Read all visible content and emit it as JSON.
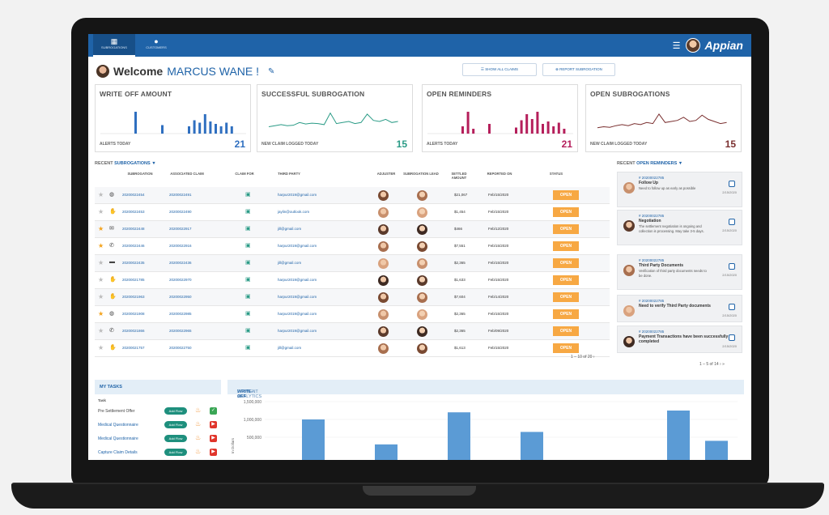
{
  "nav": {
    "tabs": [
      {
        "label": "SUBROGATIONS",
        "icon": "building-icon"
      },
      {
        "label": "CUSTOMERS",
        "icon": "person-icon"
      }
    ],
    "brand": "Appian"
  },
  "header": {
    "welcome": "Welcome",
    "user": "MARCUS WANE !",
    "btn_show_claims": "☰ SHOW ALL CLAIMS",
    "btn_report": "⊕ REPORT SUBROGATION"
  },
  "kpis": [
    {
      "title": "WRITE OFF AMOUNT",
      "foot": "ALERTS TODAY",
      "value": "21",
      "color": "#2f6fc0",
      "type": "bar"
    },
    {
      "title": "SUCCESSFUL SUBROGATION",
      "foot": "NEW CLAIM LOGGED TODAY",
      "value": "15",
      "color": "#2a9b86",
      "type": "line"
    },
    {
      "title": "OPEN REMINDERS",
      "foot": "ALERTS TODAY",
      "value": "21",
      "color": "#b51f5b",
      "type": "bar"
    },
    {
      "title": "OPEN SUBROGATIONS",
      "foot": "NEW CLAIM LOGGED TODAY",
      "value": "15",
      "color": "#7a2f2f",
      "type": "line"
    }
  ],
  "recent": {
    "title_a": "RECENT ",
    "title_b": "SUBROGATIONS",
    "filter_icon": "filter-icon",
    "headers": [
      "SUBROGATION",
      "ASSOCIATED CLAIM",
      "CLAIM FOR",
      "THIRD PARTY",
      "ADJUSTER",
      "SUBROGATION LEAD",
      "SETTLED AMOUNT",
      "REPORTED ON",
      "STATUS"
    ],
    "rows": [
      {
        "star": false,
        "channel": "web-icon",
        "sub": "20200022454",
        "claim": "20200022491",
        "party": "harpur2019@gmail.com",
        "amount": "$21,067",
        "date": "Feb/15/2020",
        "status": "OPEN"
      },
      {
        "star": false,
        "channel": "hand-icon",
        "sub": "20200022453",
        "claim": "20200022490",
        "party": "jaylin@outlook.com",
        "amount": "$1,454",
        "date": "Feb/15/2020",
        "status": "OPEN"
      },
      {
        "star": true,
        "channel": "mail-icon",
        "sub": "20200022448",
        "claim": "20200022917",
        "party": "jill@gmail.com",
        "amount": "$466",
        "date": "Feb/12/2020",
        "status": "OPEN"
      },
      {
        "star": true,
        "channel": "phone-icon",
        "sub": "20200022446",
        "claim": "20200022916",
        "party": "harpur2019@gmail.com",
        "amount": "$7,551",
        "date": "Feb/15/2020",
        "status": "OPEN"
      },
      {
        "star": false,
        "channel": "chat-icon",
        "sub": "20200022435",
        "claim": "20200022436",
        "party": "jill@gmail.com",
        "amount": "$2,365",
        "date": "Feb/15/2020",
        "status": "OPEN"
      },
      {
        "star": false,
        "channel": "hand-icon",
        "sub": "20200021785",
        "claim": "20200022970",
        "party": "harpur2019@gmail.com",
        "amount": "$1,633",
        "date": "Feb/15/2020",
        "status": "OPEN"
      },
      {
        "star": false,
        "channel": "hand-icon",
        "sub": "20200021963",
        "claim": "20200022950",
        "party": "harpur2019@gmail.com",
        "amount": "$7,604",
        "date": "Feb/14/2020",
        "status": "OPEN"
      },
      {
        "star": true,
        "channel": "web-icon",
        "sub": "20200021908",
        "claim": "20200022985",
        "party": "harpur2019@gmail.com",
        "amount": "$2,365",
        "date": "Feb/15/2020",
        "status": "OPEN"
      },
      {
        "star": false,
        "channel": "phone-icon",
        "sub": "20200021866",
        "claim": "20200022965",
        "party": "harpur2019@gmail.com",
        "amount": "$2,365",
        "date": "Feb/09/2020",
        "status": "OPEN"
      },
      {
        "star": false,
        "channel": "hand-icon",
        "sub": "20200021757",
        "claim": "20200022750",
        "party": "jill@gmail.com",
        "amount": "$1,613",
        "date": "Feb/15/2020",
        "status": "OPEN"
      }
    ],
    "pager": "1 – 10 of 20 ›"
  },
  "reminders": {
    "title_a": "RECENT ",
    "title_b": "OPEN REMINDERS",
    "items": [
      {
        "id": "# 20200022785",
        "title": "Follow Up",
        "desc": "Need to follow up as early as possible",
        "time": "2/15/2020"
      },
      {
        "id": "# 20200022785",
        "title": "Negotiation",
        "desc": "The settlement negotiation is ongoing and collection is processing. May take 3-5 days.",
        "time": "2/15/2020"
      },
      {
        "id": "# 20200022785",
        "title": "Third Party Documents",
        "desc": "Verification of third party documents needs to be done.",
        "time": "2/15/2020"
      },
      {
        "id": "# 20200022785",
        "title": "Need to verify Third Party documents",
        "desc": "",
        "time": "2/15/2020"
      },
      {
        "id": "# 20200022785",
        "title": "Payment Transactions have been successfully completed",
        "desc": "",
        "time": "2/15/2020"
      }
    ],
    "pager": "1 – 5 of 14 ›  »"
  },
  "tasks": {
    "title": "MY TASKS",
    "col": "Task",
    "items": [
      {
        "name": "Pre Settlement Offer",
        "pill": "Add Flow",
        "flag": "green"
      },
      {
        "name": "Medical Questionnaire",
        "pill": "Add Flow",
        "flag": "red"
      },
      {
        "name": "Medical Questionnaire",
        "pill": "Add Flow",
        "flag": "red"
      },
      {
        "name": "Capture Claim Details",
        "pill": "Add Flow",
        "flag": "red"
      }
    ]
  },
  "analytics": {
    "title_a": "WRITE-OFF ",
    "title_b": "PAYMENT ANALYTICS",
    "ylabel": "In Dollars",
    "chart_data": {
      "type": "bar",
      "ylabel": "In Dollars",
      "ytick_labels": [
        "1,500,000",
        "1,000,000",
        "500,000"
      ],
      "yticks": [
        1500000,
        1000000,
        500000
      ],
      "values": [
        1000000,
        300000,
        1200000,
        650000,
        1250000,
        400000
      ]
    }
  }
}
